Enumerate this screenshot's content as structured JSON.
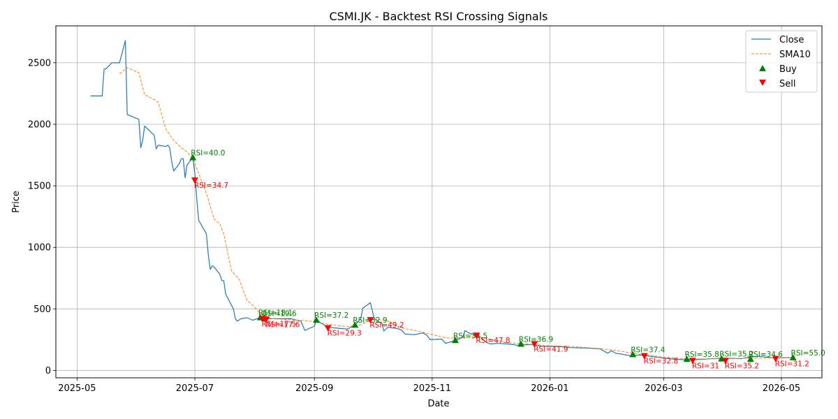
{
  "chart_data": {
    "type": "line",
    "title": "CSMI.JK - Backtest RSI Crossing Signals",
    "xlabel": "Date",
    "ylabel": "Price",
    "xlim": [
      "2025-04-20",
      "2026-05-22"
    ],
    "ylim": [
      -60,
      2800
    ],
    "grid": true,
    "legend_position": "top-right",
    "x_ticks": [
      "2025-05-01",
      "2025-07-01",
      "2025-09-01",
      "2025-11-01",
      "2026-01-01",
      "2026-03-01",
      "2026-05-01"
    ],
    "x_tick_labels": [
      "2025-05",
      "2025-07",
      "2025-09",
      "2025-11",
      "2026-01",
      "2026-03",
      "2026-05"
    ],
    "y_ticks": [
      0,
      500,
      1000,
      1500,
      2000,
      2500
    ],
    "y_tick_labels": [
      "0",
      "500",
      "1000",
      "1500",
      "2000",
      "2500"
    ],
    "colors": {
      "close": "#1f77b4",
      "sma": "#ff7f0e",
      "buy": "#008000",
      "sell": "#ff0000",
      "grid": "#b0b0b0"
    },
    "series": [
      {
        "name": "Close",
        "style": "solid",
        "points": [
          [
            "2025-05-08",
            2230
          ],
          [
            "2025-05-14",
            2230
          ],
          [
            "2025-05-15",
            2450
          ],
          [
            "2025-05-16",
            2450
          ],
          [
            "2025-05-19",
            2500
          ],
          [
            "2025-05-22",
            2500
          ],
          [
            "2025-05-23",
            2500
          ],
          [
            "2025-05-26",
            2680
          ],
          [
            "2025-05-27",
            2080
          ],
          [
            "2025-06-02",
            2040
          ],
          [
            "2025-06-03",
            1810
          ],
          [
            "2025-06-04",
            1870
          ],
          [
            "2025-06-05",
            1985
          ],
          [
            "2025-06-10",
            1910
          ],
          [
            "2025-06-11",
            1800
          ],
          [
            "2025-06-12",
            1830
          ],
          [
            "2025-06-16",
            1820
          ],
          [
            "2025-06-17",
            1830
          ],
          [
            "2025-06-18",
            1810
          ],
          [
            "2025-06-19",
            1700
          ],
          [
            "2025-06-20",
            1620
          ],
          [
            "2025-06-23",
            1680
          ],
          [
            "2025-06-24",
            1720
          ],
          [
            "2025-06-25",
            1720
          ],
          [
            "2025-06-26",
            1565
          ],
          [
            "2025-06-27",
            1670
          ],
          [
            "2025-06-30",
            1730
          ],
          [
            "2025-07-01",
            1600
          ],
          [
            "2025-07-02",
            1400
          ],
          [
            "2025-07-03",
            1220
          ],
          [
            "2025-07-07",
            1110
          ],
          [
            "2025-07-08",
            940
          ],
          [
            "2025-07-09",
            820
          ],
          [
            "2025-07-10",
            850
          ],
          [
            "2025-07-11",
            840
          ],
          [
            "2025-07-14",
            780
          ],
          [
            "2025-07-15",
            730
          ],
          [
            "2025-07-16",
            730
          ],
          [
            "2025-07-17",
            620
          ],
          [
            "2025-07-21",
            500
          ],
          [
            "2025-07-22",
            420
          ],
          [
            "2025-07-23",
            400
          ],
          [
            "2025-07-25",
            420
          ],
          [
            "2025-07-28",
            428
          ],
          [
            "2025-07-31",
            408
          ],
          [
            "2025-08-04",
            430
          ],
          [
            "2025-08-06",
            420
          ],
          [
            "2025-08-12",
            420
          ],
          [
            "2025-08-20",
            420
          ],
          [
            "2025-08-25",
            400
          ],
          [
            "2025-08-27",
            325
          ],
          [
            "2025-09-01",
            360
          ],
          [
            "2025-09-02",
            410
          ],
          [
            "2025-09-05",
            380
          ],
          [
            "2025-09-08",
            350
          ],
          [
            "2025-09-12",
            345
          ],
          [
            "2025-09-18",
            335
          ],
          [
            "2025-09-22",
            370
          ],
          [
            "2025-09-25",
            420
          ],
          [
            "2025-09-26",
            505
          ],
          [
            "2025-09-30",
            550
          ],
          [
            "2025-10-02",
            420
          ],
          [
            "2025-10-06",
            380
          ],
          [
            "2025-10-07",
            320
          ],
          [
            "2025-10-09",
            350
          ],
          [
            "2025-10-14",
            340
          ],
          [
            "2025-10-16",
            330
          ],
          [
            "2025-10-18",
            295
          ],
          [
            "2025-10-23",
            290
          ],
          [
            "2025-10-27",
            305
          ],
          [
            "2025-10-29",
            290
          ],
          [
            "2025-10-31",
            250
          ],
          [
            "2025-11-06",
            255
          ],
          [
            "2025-11-08",
            220
          ],
          [
            "2025-11-12",
            238
          ],
          [
            "2025-11-14",
            250
          ],
          [
            "2025-11-17",
            270
          ],
          [
            "2025-11-18",
            325
          ],
          [
            "2025-11-20",
            305
          ],
          [
            "2025-11-26",
            270
          ],
          [
            "2025-11-29",
            230
          ],
          [
            "2025-12-01",
            215
          ],
          [
            "2025-12-05",
            220
          ],
          [
            "2025-12-10",
            215
          ],
          [
            "2025-12-15",
            205
          ],
          [
            "2025-12-22",
            210
          ],
          [
            "2025-12-25",
            205
          ],
          [
            "2025-12-28",
            195
          ],
          [
            "2026-01-05",
            195
          ],
          [
            "2026-01-12",
            185
          ],
          [
            "2026-01-22",
            180
          ],
          [
            "2026-01-27",
            175
          ],
          [
            "2026-01-31",
            140
          ],
          [
            "2026-02-02",
            160
          ],
          [
            "2026-02-04",
            140
          ],
          [
            "2026-02-08",
            130
          ],
          [
            "2026-02-12",
            120
          ],
          [
            "2026-02-17",
            125
          ],
          [
            "2026-02-22",
            115
          ],
          [
            "2026-03-01",
            100
          ],
          [
            "2026-03-08",
            90
          ],
          [
            "2026-03-15",
            85
          ],
          [
            "2026-03-20",
            90
          ],
          [
            "2026-03-31",
            100
          ],
          [
            "2026-04-02",
            100
          ],
          [
            "2026-04-10",
            95
          ],
          [
            "2026-04-15",
            110
          ],
          [
            "2026-04-20",
            115
          ],
          [
            "2026-04-27",
            100
          ],
          [
            "2026-05-06",
            105
          ],
          [
            "2026-05-08",
            110
          ]
        ]
      },
      {
        "name": "SMA10",
        "style": "dashed",
        "points": [
          [
            "2025-05-23",
            2410
          ],
          [
            "2025-05-27",
            2460
          ],
          [
            "2025-06-02",
            2420
          ],
          [
            "2025-06-05",
            2240
          ],
          [
            "2025-06-10",
            2200
          ],
          [
            "2025-06-12",
            2180
          ],
          [
            "2025-06-16",
            1960
          ],
          [
            "2025-06-20",
            1870
          ],
          [
            "2025-06-24",
            1810
          ],
          [
            "2025-06-27",
            1775
          ],
          [
            "2025-06-30",
            1725
          ],
          [
            "2025-07-03",
            1600
          ],
          [
            "2025-07-07",
            1440
          ],
          [
            "2025-07-11",
            1230
          ],
          [
            "2025-07-14",
            1190
          ],
          [
            "2025-07-16",
            1110
          ],
          [
            "2025-07-18",
            960
          ],
          [
            "2025-07-20",
            810
          ],
          [
            "2025-07-24",
            740
          ],
          [
            "2025-07-28",
            570
          ],
          [
            "2025-07-31",
            530
          ],
          [
            "2025-08-04",
            460
          ],
          [
            "2025-08-10",
            420
          ],
          [
            "2025-08-20",
            412
          ],
          [
            "2025-08-30",
            400
          ],
          [
            "2025-09-10",
            370
          ],
          [
            "2025-09-18",
            355
          ],
          [
            "2025-09-25",
            370
          ],
          [
            "2025-10-02",
            420
          ],
          [
            "2025-10-09",
            400
          ],
          [
            "2025-10-16",
            345
          ],
          [
            "2025-10-23",
            325
          ],
          [
            "2025-10-31",
            295
          ],
          [
            "2025-11-08",
            265
          ],
          [
            "2025-11-16",
            260
          ],
          [
            "2025-11-24",
            275
          ],
          [
            "2025-12-01",
            255
          ],
          [
            "2025-12-10",
            225
          ],
          [
            "2025-12-20",
            215
          ],
          [
            "2026-01-01",
            200
          ],
          [
            "2026-01-12",
            195
          ],
          [
            "2026-01-25",
            180
          ],
          [
            "2026-02-05",
            160
          ],
          [
            "2026-02-15",
            135
          ],
          [
            "2026-02-28",
            110
          ],
          [
            "2026-03-15",
            92
          ],
          [
            "2026-03-31",
            95
          ],
          [
            "2026-04-15",
            100
          ],
          [
            "2026-04-27",
            102
          ],
          [
            "2026-05-08",
            105
          ]
        ]
      }
    ],
    "legend": [
      {
        "label": "Close",
        "kind": "solid-line"
      },
      {
        "label": "SMA10",
        "kind": "dashed-line"
      },
      {
        "label": "Buy",
        "kind": "triangle-up"
      },
      {
        "label": "Sell",
        "kind": "triangle-down"
      }
    ],
    "buy_signals": [
      {
        "date": "2025-06-30",
        "price": 1730,
        "label": "RSI=40.0"
      },
      {
        "date": "2025-08-04",
        "price": 430,
        "label": "RSI=18.1"
      },
      {
        "date": "2025-08-06",
        "price": 425,
        "label": "RSI=19.6"
      },
      {
        "date": "2025-09-02",
        "price": 410,
        "label": "RSI=37.2"
      },
      {
        "date": "2025-09-22",
        "price": 370,
        "label": "RSI=32.9"
      },
      {
        "date": "2025-11-13",
        "price": 245,
        "label": "RSI=34.5"
      },
      {
        "date": "2025-12-17",
        "price": 215,
        "label": "RSI=36.9"
      },
      {
        "date": "2026-02-13",
        "price": 130,
        "label": "RSI=37.4"
      },
      {
        "date": "2026-03-13",
        "price": 92,
        "label": "RSI=35.8"
      },
      {
        "date": "2026-03-31",
        "price": 95,
        "label": "RSI=35.2"
      },
      {
        "date": "2026-04-15",
        "price": 92,
        "label": "RSI=34.6"
      },
      {
        "date": "2026-05-07",
        "price": 105,
        "label": "RSI=55.0"
      }
    ],
    "sell_signals": [
      {
        "date": "2025-07-01",
        "price": 1545,
        "label": "RSI=34.7"
      },
      {
        "date": "2025-08-05",
        "price": 420,
        "label": "RSI=17.5"
      },
      {
        "date": "2025-08-07",
        "price": 415,
        "label": "RSI=17.6"
      },
      {
        "date": "2025-09-08",
        "price": 345,
        "label": "RSI=29.3"
      },
      {
        "date": "2025-09-30",
        "price": 410,
        "label": "RSI=49.2"
      },
      {
        "date": "2025-11-24",
        "price": 285,
        "label": "RSI=47.8"
      },
      {
        "date": "2025-12-24",
        "price": 215,
        "label": "RSI=41.9"
      },
      {
        "date": "2026-02-19",
        "price": 118,
        "label": "RSI=32.8"
      },
      {
        "date": "2026-03-16",
        "price": 80,
        "label": "RSI=31"
      },
      {
        "date": "2026-04-02",
        "price": 78,
        "label": "RSI=35.2"
      },
      {
        "date": "2026-04-28",
        "price": 95,
        "label": "RSI=31.2"
      }
    ]
  }
}
